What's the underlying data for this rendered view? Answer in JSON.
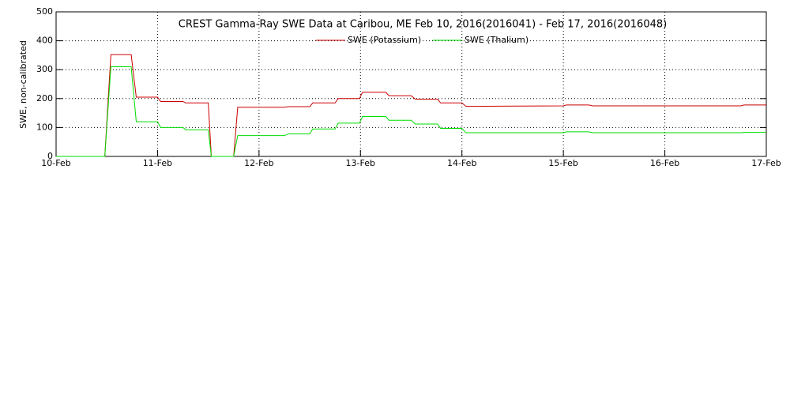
{
  "chart_data": {
    "type": "line",
    "title": "CREST Gamma-Ray SWE Data at Caribou, ME   Feb 10, 2016(2016041) - Feb 17, 2016(2016048)",
    "y_label": "SWE, non-calibrated",
    "x": [
      10.0,
      10.48,
      10.54,
      10.74,
      10.79,
      11.0,
      11.03,
      11.25,
      11.28,
      11.5,
      11.53,
      11.75,
      11.79,
      12.25,
      12.29,
      12.5,
      12.53,
      12.75,
      12.78,
      12.99,
      13.02,
      13.25,
      13.28,
      13.5,
      13.54,
      13.76,
      13.79,
      14.0,
      14.04,
      15.0,
      15.03,
      15.25,
      15.29,
      16.75,
      16.78,
      17.0
    ],
    "series": [
      {
        "name": "SWE (Potassium)",
        "color": "#cc0000",
        "values": [
          0,
          0,
          352,
          352,
          205,
          205,
          190,
          190,
          185,
          185,
          0,
          0,
          170,
          170,
          172,
          172,
          185,
          185,
          200,
          200,
          222,
          222,
          210,
          210,
          198,
          198,
          185,
          185,
          173,
          175,
          178,
          178,
          175,
          175,
          178,
          178
        ]
      },
      {
        "name": "SWE (Thalium)",
        "color": "#00dd00",
        "values": [
          0,
          0,
          310,
          310,
          120,
          120,
          100,
          100,
          92,
          92,
          0,
          0,
          72,
          72,
          78,
          78,
          95,
          95,
          115,
          115,
          138,
          138,
          125,
          125,
          112,
          112,
          97,
          97,
          82,
          82,
          85,
          85,
          82,
          82,
          83,
          83
        ]
      }
    ],
    "xlim": [
      10,
      17
    ],
    "xticks": [
      {
        "value": 10,
        "label": "10-Feb"
      },
      {
        "value": 11,
        "label": "11-Feb"
      },
      {
        "value": 12,
        "label": "12-Feb"
      },
      {
        "value": 13,
        "label": "13-Feb"
      },
      {
        "value": 14,
        "label": "14-Feb"
      },
      {
        "value": 15,
        "label": "15-Feb"
      },
      {
        "value": 16,
        "label": "16-Feb"
      },
      {
        "value": 17,
        "label": "17-Feb"
      }
    ],
    "ylim": [
      0,
      500
    ],
    "yticks": [
      0,
      100,
      200,
      300,
      400,
      500
    ],
    "grid": true
  }
}
